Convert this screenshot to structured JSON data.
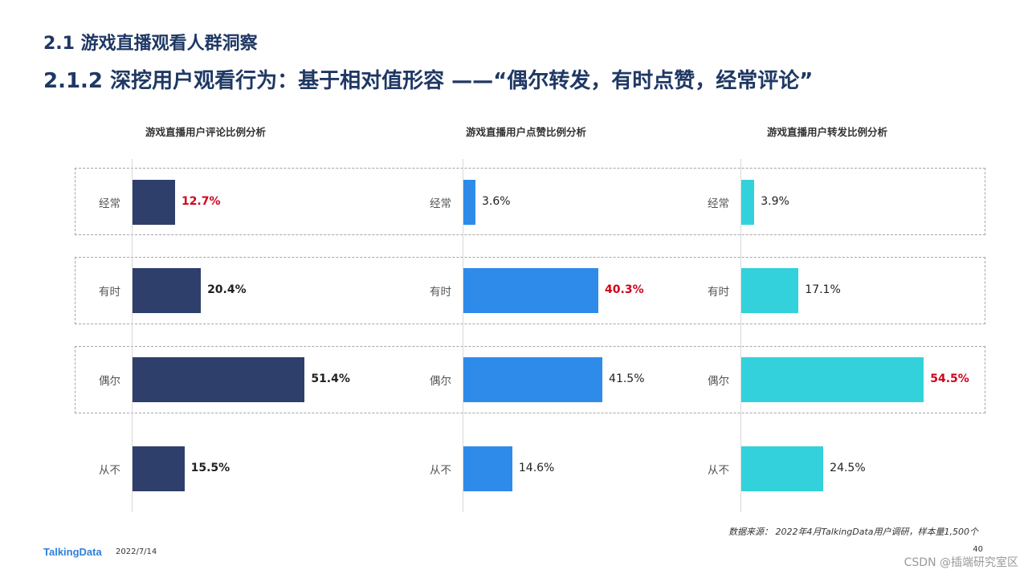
{
  "header": {
    "section_title": "2.1 游戏直播观看人群洞察",
    "subtitle": "2.1.2 深挖用户观看行为：基于相对值形容 ——“偶尔转发，有时点赞，经常评论”"
  },
  "chart_data": [
    {
      "type": "bar",
      "orientation": "horizontal",
      "title": "游戏直播用户评论比例分析",
      "categories": [
        "经常",
        "有时",
        "偶尔",
        "从不"
      ],
      "values": [
        12.7,
        20.4,
        51.4,
        15.5
      ],
      "value_labels": [
        "12.7%",
        "20.4%",
        "51.4%",
        "15.5%"
      ],
      "highlight_index": 0,
      "color": "#2e3f6b",
      "label_style": "bold"
    },
    {
      "type": "bar",
      "orientation": "horizontal",
      "title": "游戏直播用户点赞比例分析",
      "categories": [
        "经常",
        "有时",
        "偶尔",
        "从不"
      ],
      "values": [
        3.6,
        40.3,
        41.5,
        14.6
      ],
      "value_labels": [
        "3.6%",
        "40.3%",
        "41.5%",
        "14.6%"
      ],
      "highlight_index": 1,
      "color": "#2f8bea",
      "label_style": "normal"
    },
    {
      "type": "bar",
      "orientation": "horizontal",
      "title": "游戏直播用户转发比例分析",
      "categories": [
        "经常",
        "有时",
        "偶尔",
        "从不"
      ],
      "values": [
        3.9,
        17.1,
        54.5,
        24.5
      ],
      "value_labels": [
        "3.9%",
        "17.1%",
        "54.5%",
        "24.5%"
      ],
      "highlight_index": 2,
      "color": "#33d1dc",
      "label_style": "normal"
    }
  ],
  "colors": {
    "accent": "#d0021b",
    "title": "#1f3864",
    "dashed_border": "#a6a6a6"
  },
  "footer": {
    "source": "数据来源： 2022年4月TalkingData用户调研，样本量1,500个",
    "logo": "TalkingData",
    "date": "2022/7/14",
    "page": "40",
    "watermark": "CSDN @插端研究室区"
  }
}
